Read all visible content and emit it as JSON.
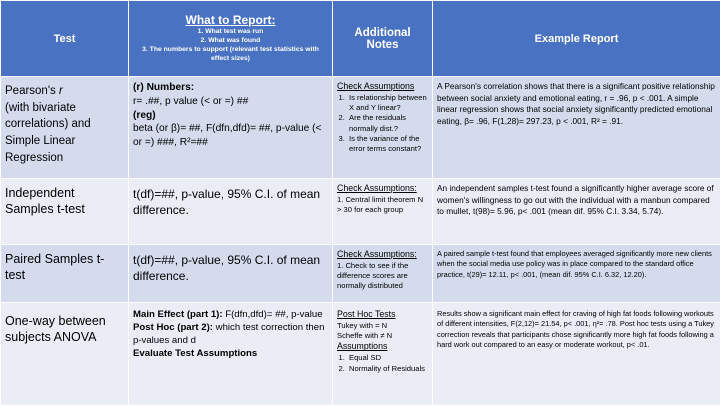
{
  "header": {
    "test": "Test",
    "what_title": "What to Report:",
    "what_items": [
      "1.      What test was run",
      "2.      What was found",
      "3.      The numbers to support (relevant test statistics with effect sizes)"
    ],
    "notes": "Additional Notes",
    "example": "Example Report"
  },
  "rows": [
    {
      "test_parts": [
        "Pearson's ",
        "r",
        " (with bivariate correlations) and Simple Linear Regression"
      ],
      "report": {
        "l1": "(r) Numbers:",
        "l2": "r= .##, p value (< or =) ##",
        "l3": "(reg)",
        "l4": "beta (or β)= ##, F(dfn,dfd)= ##, p-value (< or =) ###, R²=##"
      },
      "notes": {
        "heading": "Check Assumptions",
        "items": [
          "Is relationship between X and Y linear?",
          "Are the residuals normally dist.?",
          "Is the variance of the error terms constant?"
        ]
      },
      "example": "A Pearson's correlation shows that there is a significant positive relationship between social anxiety and emotional eating, r = .96, p < .001. A simple linear regression shows that social anxiety significantly predicted emotional eating, β= .96, F(1,28)= 297.23, p < .001, R² = .91."
    },
    {
      "test": "Independent Samples t-test",
      "report": "t(df)=##, p-value, 95% C.I. of mean difference.",
      "notes": {
        "heading": "Check Assumptions:",
        "text": "1. Central limit theorem N > 30 for each group"
      },
      "example": "An independent samples t-test found a significantly higher average score of women's willingness to go out with the individual with a manbun compared to mullet, t(98)= 5.96, p< .001 (mean dif. 95% C.I. 3.34, 5.74)."
    },
    {
      "test": "Paired Samples t-test",
      "report": "t(df)=##, p-value, 95% C.I. of mean difference.",
      "notes": {
        "heading": "Check Assumptions:",
        "text": "1. Check to see if the difference scores are normally distributed"
      },
      "example": "A paired sample t-test found that employees averaged significantly more new clients when the social media use policy was in place compared to the standard office practice, t(29)= 12.11, p< .001, (mean dif. 95% C.I. 6.32, 12.20)."
    },
    {
      "test": "One-way between subjects ANOVA",
      "report": {
        "main_label": "Main Effect (part 1):",
        "main_text": " F(dfn,dfd)= ##, p-value",
        "posthoc_label": "Post Hoc (part 2):",
        "posthoc_text": " which test correction then p-values and d",
        "evaluate": "Evaluate Test Assumptions"
      },
      "notes": {
        "heading1": "Post Hoc Tests",
        "line1": "Tukey with = N",
        "line2": "Scheffe with ≠ N",
        "heading2": "Assumptions",
        "items": [
          "Equal SD",
          "Normality of Residuals"
        ]
      },
      "example": "Results show a significant main effect for craving of high fat foods following workouts of different intensities, F(2,12)= 21.54, p< .001, η²= .78. Post hoc tests using a Tukey correction reveals that participants chose significantly more high fat foods following a hard work out compared to an easy or moderate workout, p< .01."
    }
  ],
  "colors": {
    "header": "#4a72c2",
    "row_dark": "#d3dbed",
    "row_light": "#eaedf6"
  }
}
